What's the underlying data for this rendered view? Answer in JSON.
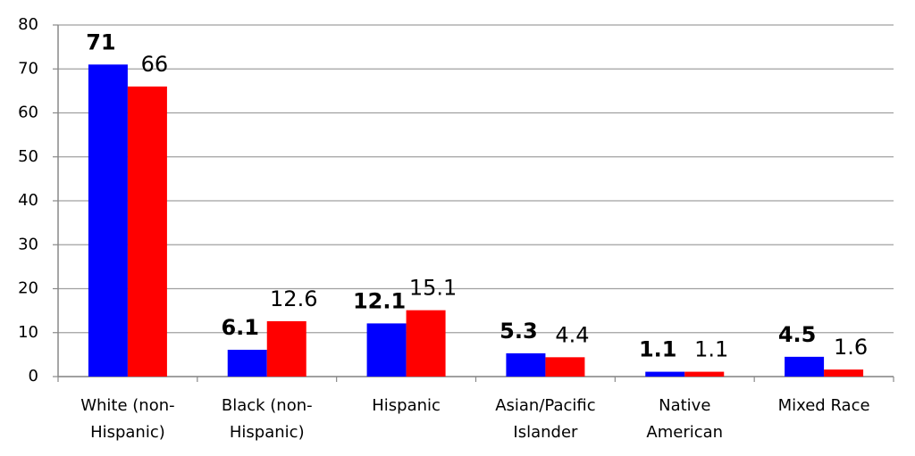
{
  "chart_data": {
    "type": "bar",
    "categories": [
      [
        "White (non-",
        "Hispanic)"
      ],
      [
        "Black (non-",
        "Hispanic)"
      ],
      [
        "Hispanic"
      ],
      [
        "Asian/Pacific",
        "Islander"
      ],
      [
        "Native",
        "American"
      ],
      [
        "Mixed Race"
      ]
    ],
    "series": [
      {
        "color": "#0000ff",
        "values": [
          71,
          6.1,
          12.1,
          5.3,
          1.1,
          4.5
        ],
        "label_weight": "bold"
      },
      {
        "color": "#ff0000",
        "values": [
          66,
          12.6,
          15.1,
          4.4,
          1.1,
          1.6
        ],
        "label_weight": "normal"
      }
    ],
    "ylim": [
      0,
      80
    ],
    "yticks": [
      0,
      10,
      20,
      30,
      40,
      50,
      60,
      70,
      80
    ],
    "grid": true
  }
}
